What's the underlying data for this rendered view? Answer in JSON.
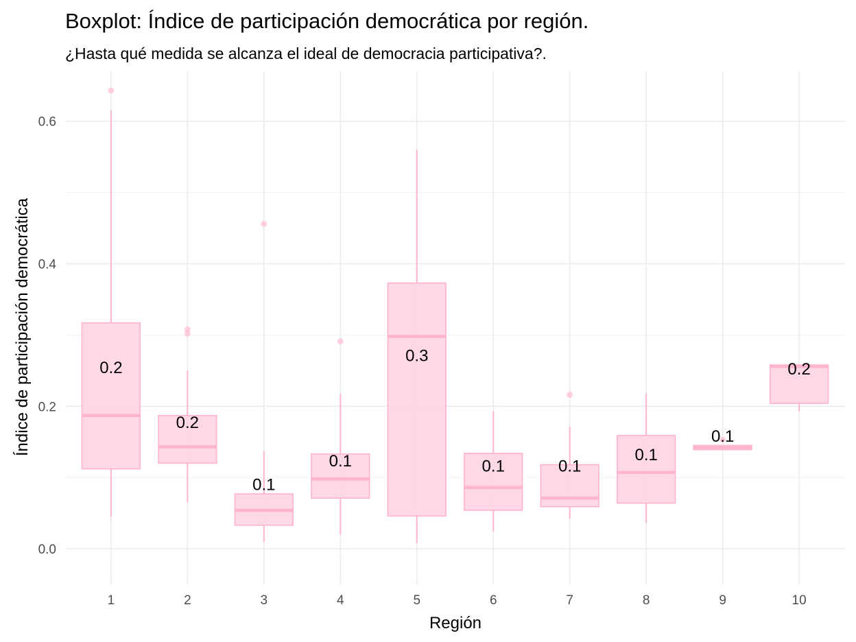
{
  "chart_data": {
    "type": "boxplot",
    "title": "Boxplot: Índice de participación democrática por región.",
    "subtitle": "¿Hasta qué medida se alcanza el ideal de democracia participativa?.",
    "xlabel": "Región",
    "ylabel": "Índice de participación democrática",
    "categories": [
      "1",
      "2",
      "3",
      "4",
      "5",
      "6",
      "7",
      "8",
      "9",
      "10"
    ],
    "ylim": [
      -0.05,
      0.67
    ],
    "yticks": [
      0.0,
      0.2,
      0.4,
      0.6
    ],
    "ytick_labels": [
      "0.0",
      "0.2",
      "0.4",
      "0.6"
    ],
    "grid": true,
    "box_color": "#ffb3cf",
    "box_fill": "#ffd6e6",
    "boxes": [
      {
        "region": "1",
        "whisker_low": 0.045,
        "q1": 0.112,
        "median": 0.187,
        "q3": 0.317,
        "whisker_high": 0.615,
        "outliers": [
          0.643
        ],
        "label": "0.2",
        "label_y": 0.255
      },
      {
        "region": "2",
        "whisker_low": 0.065,
        "q1": 0.12,
        "median": 0.143,
        "q3": 0.187,
        "whisker_high": 0.25,
        "outliers": [
          0.302,
          0.308
        ],
        "label": "0.2",
        "label_y": 0.178
      },
      {
        "region": "3",
        "whisker_low": 0.01,
        "q1": 0.033,
        "median": 0.054,
        "q3": 0.077,
        "whisker_high": 0.137,
        "outliers": [
          0.456
        ],
        "label": "0.1",
        "label_y": 0.091
      },
      {
        "region": "4",
        "whisker_low": 0.02,
        "q1": 0.071,
        "median": 0.098,
        "q3": 0.133,
        "whisker_high": 0.217,
        "outliers": [
          0.291
        ],
        "label": "0.1",
        "label_y": 0.124
      },
      {
        "region": "5",
        "whisker_low": 0.008,
        "q1": 0.046,
        "median": 0.298,
        "q3": 0.373,
        "whisker_high": 0.56,
        "outliers": [],
        "label": "0.3",
        "label_y": 0.272
      },
      {
        "region": "6",
        "whisker_low": 0.024,
        "q1": 0.054,
        "median": 0.086,
        "q3": 0.134,
        "whisker_high": 0.193,
        "outliers": [],
        "label": "0.1",
        "label_y": 0.117
      },
      {
        "region": "7",
        "whisker_low": 0.042,
        "q1": 0.059,
        "median": 0.071,
        "q3": 0.118,
        "whisker_high": 0.171,
        "outliers": [
          0.216
        ],
        "label": "0.1",
        "label_y": 0.117
      },
      {
        "region": "8",
        "whisker_low": 0.036,
        "q1": 0.064,
        "median": 0.107,
        "q3": 0.159,
        "whisker_high": 0.218,
        "outliers": [],
        "label": "0.1",
        "label_y": 0.133
      },
      {
        "region": "9",
        "whisker_low": 0.139,
        "q1": 0.139,
        "median": 0.142,
        "q3": 0.145,
        "whisker_high": 0.145,
        "outliers": [
          0.153
        ],
        "label": "0.1",
        "label_y": 0.159
      },
      {
        "region": "10",
        "whisker_low": 0.193,
        "q1": 0.204,
        "median": 0.256,
        "q3": 0.258,
        "whisker_high": 0.258,
        "outliers": [],
        "label": "0.2",
        "label_y": 0.253
      }
    ]
  }
}
